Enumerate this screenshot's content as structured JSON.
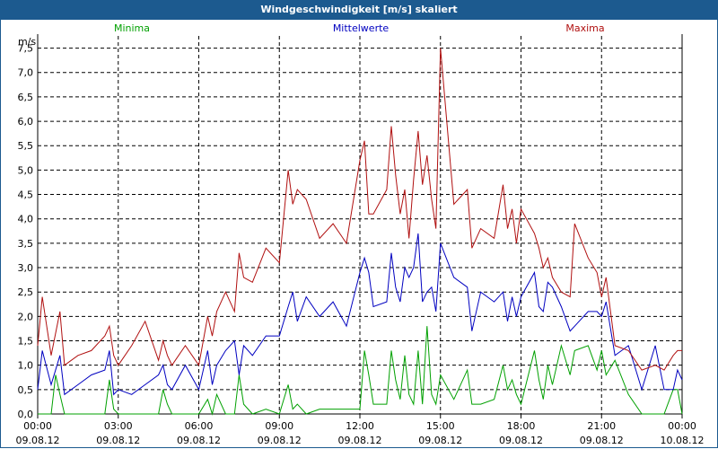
{
  "chart_data": {
    "type": "line",
    "title": "Windgeschwindigkeit [m/s] skaliert",
    "ylabel": "m/s",
    "ylim": [
      0,
      7.75
    ],
    "yticks": [
      "0,0",
      "0,5",
      "1,0",
      "1,5",
      "2,0",
      "2,5",
      "3,0",
      "3,5",
      "4,0",
      "4,5",
      "5,0",
      "5,5",
      "6,0",
      "6,5",
      "7,0",
      "7,5"
    ],
    "xrange_hours": [
      0,
      24
    ],
    "xticks": [
      {
        "time": "00:00",
        "date": "09.08.12"
      },
      {
        "time": "03:00",
        "date": "09.08.12"
      },
      {
        "time": "06:00",
        "date": "09.08.12"
      },
      {
        "time": "09:00",
        "date": "09.08.12"
      },
      {
        "time": "12:00",
        "date": "09.08.12"
      },
      {
        "time": "15:00",
        "date": "09.08.12"
      },
      {
        "time": "18:00",
        "date": "09.08.12"
      },
      {
        "time": "21:00",
        "date": "09.08.12"
      },
      {
        "time": "00:00",
        "date": "10.08.12"
      }
    ],
    "grid": true,
    "series": [
      {
        "name": "Minima",
        "color": "#00a000",
        "x": [
          0,
          0.5,
          0.67,
          0.83,
          1,
          1.5,
          2,
          2.5,
          2.67,
          2.83,
          3,
          3.5,
          4,
          4.5,
          4.67,
          4.83,
          5,
          5.5,
          6,
          6.33,
          6.5,
          6.67,
          7,
          7.33,
          7.5,
          7.67,
          8,
          8.5,
          9,
          9.33,
          9.5,
          9.67,
          10,
          10.5,
          11,
          11.5,
          12,
          12.17,
          12.33,
          12.5,
          13,
          13.17,
          13.33,
          13.5,
          13.67,
          13.83,
          14,
          14.17,
          14.33,
          14.5,
          14.67,
          14.83,
          15,
          15.5,
          16,
          16.17,
          16.5,
          17,
          17.33,
          17.5,
          17.67,
          17.83,
          18,
          18.5,
          18.67,
          18.83,
          19,
          19.17,
          19.5,
          19.83,
          20,
          20.5,
          20.83,
          21,
          21.17,
          21.5,
          22,
          22.5,
          23,
          23.33,
          23.67,
          23.83,
          24
        ],
        "values": [
          0,
          0,
          0.8,
          0.4,
          0,
          0,
          0,
          0,
          0.7,
          0.1,
          0,
          0,
          0,
          0,
          0.5,
          0.2,
          0,
          0,
          0,
          0.3,
          0,
          0.4,
          0,
          0,
          0.8,
          0.2,
          0,
          0.1,
          0,
          0.6,
          0.1,
          0.2,
          0,
          0.1,
          0.1,
          0.1,
          0.1,
          1.3,
          0.8,
          0.2,
          0.2,
          1.3,
          0.7,
          0.3,
          1.2,
          0.4,
          0.2,
          1.3,
          0.2,
          1.8,
          0.4,
          0.2,
          0.8,
          0.3,
          0.9,
          0.2,
          0.2,
          0.3,
          1.0,
          0.5,
          0.7,
          0.4,
          0.2,
          1.3,
          0.7,
          0.3,
          1.0,
          0.6,
          1.4,
          0.8,
          1.3,
          1.4,
          0.9,
          1.3,
          0.8,
          1.1,
          0.4,
          0,
          0,
          0,
          0.5,
          0.5,
          0
        ]
      },
      {
        "name": "Mittelwerte",
        "color": "#0000c0",
        "x": [
          0,
          0.17,
          0.5,
          0.83,
          1,
          1.5,
          2,
          2.5,
          2.67,
          2.83,
          3,
          3.5,
          4,
          4.5,
          4.67,
          4.83,
          5,
          5.5,
          6,
          6.33,
          6.5,
          6.67,
          7,
          7.33,
          7.5,
          7.67,
          8,
          8.5,
          9,
          9.33,
          9.5,
          9.67,
          10,
          10.5,
          11,
          11.5,
          12,
          12.17,
          12.33,
          12.5,
          13,
          13.17,
          13.33,
          13.5,
          13.67,
          13.83,
          14,
          14.17,
          14.33,
          14.5,
          14.67,
          14.83,
          15,
          15.5,
          16,
          16.17,
          16.5,
          17,
          17.33,
          17.5,
          17.67,
          17.83,
          18,
          18.5,
          18.67,
          18.83,
          19,
          19.17,
          19.5,
          19.83,
          20,
          20.5,
          20.83,
          21,
          21.17,
          21.5,
          22,
          22.5,
          23,
          23.33,
          23.67,
          23.83,
          24
        ],
        "values": [
          0.5,
          1.3,
          0.6,
          1.2,
          0.4,
          0.6,
          0.8,
          0.9,
          1.3,
          0.4,
          0.5,
          0.4,
          0.6,
          0.8,
          1.0,
          0.6,
          0.5,
          1.0,
          0.5,
          1.3,
          0.6,
          1.0,
          1.3,
          1.5,
          0.8,
          1.4,
          1.2,
          1.6,
          1.6,
          2.2,
          2.5,
          1.9,
          2.4,
          2.0,
          2.3,
          1.8,
          2.9,
          3.2,
          2.9,
          2.2,
          2.3,
          3.3,
          2.6,
          2.3,
          3.0,
          2.8,
          3.0,
          3.7,
          2.3,
          2.5,
          2.6,
          2.1,
          3.5,
          2.8,
          2.6,
          1.7,
          2.5,
          2.3,
          2.5,
          1.9,
          2.4,
          2.0,
          2.4,
          2.9,
          2.2,
          2.1,
          2.7,
          2.6,
          2.2,
          1.7,
          1.8,
          2.1,
          2.1,
          2.0,
          2.3,
          1.2,
          1.4,
          0.5,
          1.4,
          0.5,
          0.5,
          0.9,
          0.7
        ]
      },
      {
        "name": "Maxima",
        "color": "#b01010",
        "x": [
          0,
          0.17,
          0.5,
          0.83,
          1,
          1.5,
          2,
          2.5,
          2.67,
          2.83,
          3,
          3.5,
          4,
          4.5,
          4.67,
          4.83,
          5,
          5.5,
          6,
          6.33,
          6.5,
          6.67,
          7,
          7.33,
          7.5,
          7.67,
          8,
          8.5,
          9,
          9.33,
          9.5,
          9.67,
          10,
          10.5,
          11,
          11.5,
          12,
          12.17,
          12.33,
          12.5,
          13,
          13.17,
          13.33,
          13.5,
          13.67,
          13.83,
          14,
          14.17,
          14.33,
          14.5,
          14.67,
          14.83,
          15,
          15.5,
          16,
          16.17,
          16.5,
          17,
          17.33,
          17.5,
          17.67,
          17.83,
          18,
          18.5,
          18.67,
          18.83,
          19,
          19.17,
          19.5,
          19.83,
          20,
          20.5,
          20.83,
          21,
          21.17,
          21.5,
          22,
          22.5,
          23,
          23.33,
          23.67,
          23.83,
          24
        ],
        "values": [
          1.4,
          2.4,
          1.2,
          2.1,
          1.0,
          1.2,
          1.3,
          1.6,
          1.8,
          1.2,
          1.0,
          1.4,
          1.9,
          1.1,
          1.5,
          1.2,
          1.0,
          1.4,
          1.0,
          2.0,
          1.6,
          2.1,
          2.5,
          2.1,
          3.3,
          2.8,
          2.7,
          3.4,
          3.1,
          5.0,
          4.3,
          4.6,
          4.4,
          3.6,
          3.9,
          3.5,
          5.2,
          5.6,
          4.1,
          4.1,
          4.6,
          5.9,
          4.9,
          4.1,
          4.6,
          3.6,
          4.8,
          5.8,
          4.7,
          5.3,
          4.4,
          3.8,
          7.5,
          4.3,
          4.6,
          3.4,
          3.8,
          3.6,
          4.7,
          3.8,
          4.2,
          3.5,
          4.2,
          3.7,
          3.4,
          3.0,
          3.2,
          2.8,
          2.5,
          2.4,
          3.9,
          3.2,
          2.9,
          2.4,
          2.8,
          1.4,
          1.3,
          0.9,
          1.0,
          0.9,
          1.2,
          1.3,
          1.3
        ]
      }
    ]
  }
}
